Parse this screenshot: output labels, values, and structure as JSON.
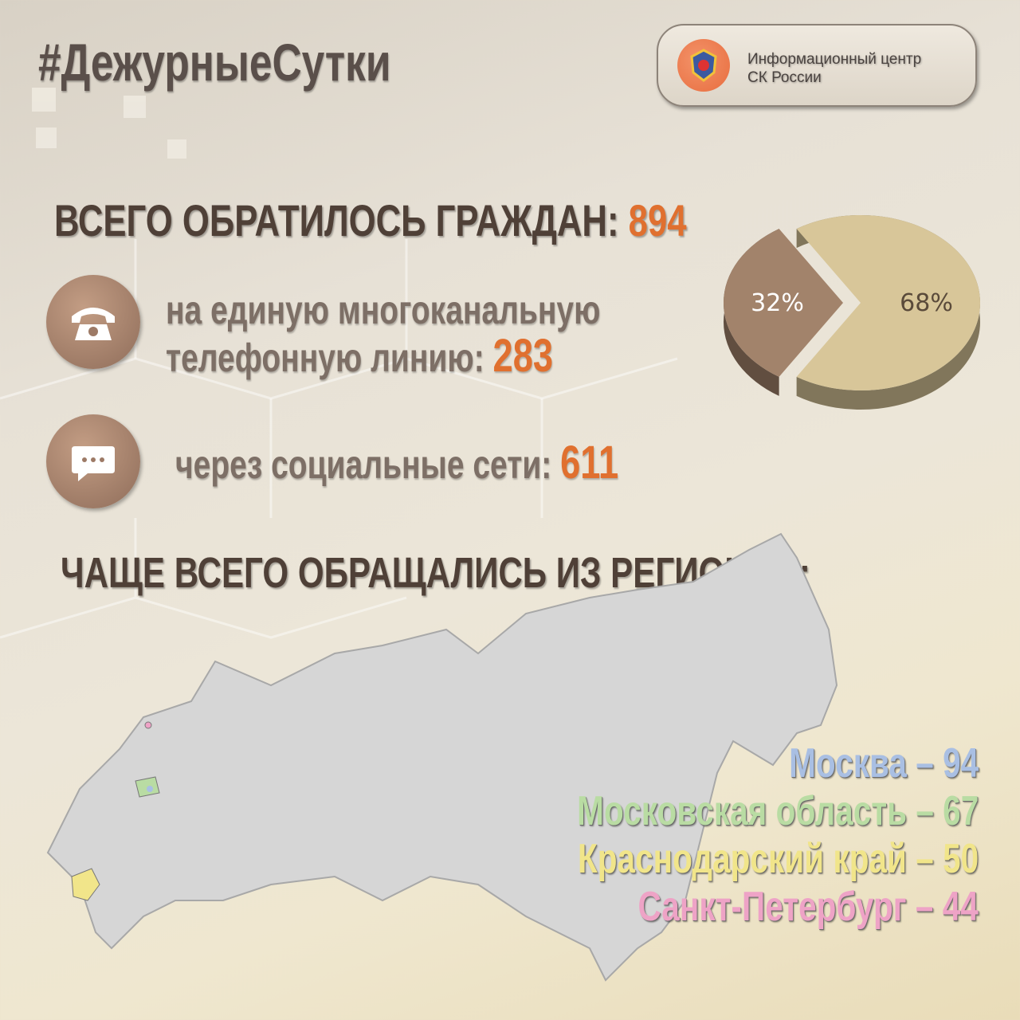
{
  "hashtag": "#ДежурныеСутки",
  "badge": {
    "line1": "Информационный центр",
    "line2": "СК России",
    "logo_icon": "sk-emblem-icon"
  },
  "total": {
    "label": "ВСЕГО ОБРАТИЛОСЬ ГРАЖДАН:",
    "value": "894"
  },
  "phone": {
    "line1": "на единую многоканальную",
    "line2": "телефонную линию:",
    "value": "283",
    "icon": "phone-icon"
  },
  "social": {
    "label": "через социальные сети:",
    "value": "611",
    "icon": "chat-bubble-icon"
  },
  "regions_title": "ЧАЩЕ ВСЕГО ОБРАЩАЛИСЬ ИЗ РЕГИОНОВ:",
  "regions": [
    {
      "label": "Москва – 94",
      "color": "#a9bfe3"
    },
    {
      "label": "Московская область – 67",
      "color": "#b9dca3"
    },
    {
      "label": "Краснодарский край – 50",
      "color": "#f1e58a"
    },
    {
      "label": "Санкт-Петербург – 44",
      "color": "#eea3c6"
    }
  ],
  "chart_data": {
    "type": "pie",
    "categories": [
      "телефонная линия",
      "социальные сети"
    ],
    "values": [
      32,
      68
    ],
    "labels": [
      "32%",
      "68%"
    ],
    "colors": [
      "#a2836b",
      "#d8c699"
    ]
  }
}
